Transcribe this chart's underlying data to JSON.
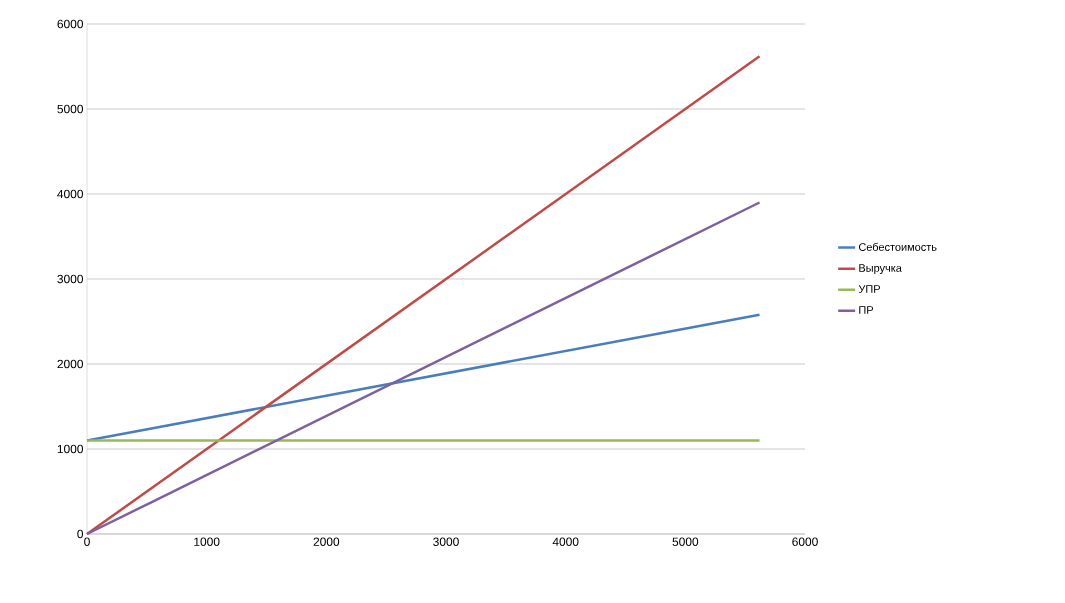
{
  "chart_data": {
    "type": "line",
    "x": [
      0,
      550,
      5620
    ],
    "series": [
      {
        "name": "Себестоимость",
        "color": "#4a7ebb",
        "values": [
          1100,
          1245,
          2580
        ]
      },
      {
        "name": "Выручка",
        "color": "#be4b48",
        "values": [
          0,
          550,
          5620
        ]
      },
      {
        "name": "УПР",
        "color": "#98b954",
        "values": [
          1100,
          1100,
          1100
        ]
      },
      {
        "name": "ПР",
        "color": "#7d60a0",
        "values": [
          0,
          382,
          3900
        ]
      }
    ],
    "xlim": [
      0,
      6000
    ],
    "xticks": [
      0,
      1000,
      2000,
      3000,
      4000,
      5000,
      6000
    ],
    "ylim": [
      0,
      6000
    ],
    "yticks": [
      0,
      1000,
      2000,
      3000,
      4000,
      5000,
      6000
    ],
    "grid": "y",
    "legend": "right",
    "marker": "none",
    "line_style": "solid"
  }
}
